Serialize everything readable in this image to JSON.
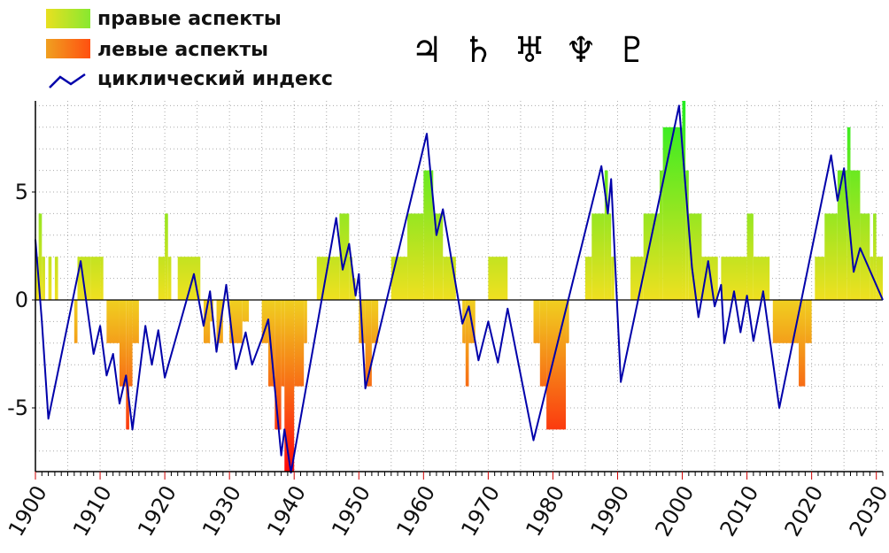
{
  "legend": {
    "right_aspects": "правые аспекты",
    "left_aspects": "левые аспекты",
    "cyclic_index": "циклический индекс"
  },
  "planet_symbols": [
    "♃",
    "♄",
    "♅",
    "♆",
    "♇"
  ],
  "colors": {
    "cyclic_line": "#0000aa",
    "positive_low": "#e8e020",
    "positive_high": "#22ee22",
    "negative_low": "#f0c020",
    "negative_high": "#ff1010",
    "grid": "#aaaaaa"
  },
  "chart_data": {
    "type": "bar",
    "xlim": [
      1900,
      2031
    ],
    "ylim": [
      -8,
      9.3
    ],
    "yticks": [
      -5,
      0,
      5
    ],
    "ytick_labels": [
      "-5",
      "0",
      "5"
    ],
    "xticks": [
      1900,
      1910,
      1920,
      1930,
      1940,
      1950,
      1960,
      1970,
      1980,
      1990,
      2000,
      2010,
      2020,
      2030
    ],
    "xtick_labels": [
      "1900",
      "1910",
      "1920",
      "1930",
      "1940",
      "1950",
      "1960",
      "1970",
      "1980",
      "1990",
      "2000",
      "2010",
      "2020",
      "2030"
    ],
    "grid": true,
    "legend_position": "top-left",
    "series": [
      {
        "name": "правые аспекты / левые аспекты",
        "type": "step-bar",
        "steps": [
          [
            1900,
            2
          ],
          [
            1900.5,
            4
          ],
          [
            1901,
            2
          ],
          [
            1901.5,
            0
          ],
          [
            1902,
            2
          ],
          [
            1902.5,
            0
          ],
          [
            1903,
            2
          ],
          [
            1903.5,
            0
          ],
          [
            1906,
            -2
          ],
          [
            1906.5,
            2
          ],
          [
            1908.5,
            2
          ],
          [
            1910,
            2
          ],
          [
            1910.5,
            0
          ],
          [
            1911,
            -2
          ],
          [
            1913,
            -4
          ],
          [
            1914,
            -6
          ],
          [
            1914.5,
            -4
          ],
          [
            1915,
            -2
          ],
          [
            1916,
            0
          ],
          [
            1919,
            2
          ],
          [
            1920,
            4
          ],
          [
            1920.5,
            2
          ],
          [
            1921,
            0
          ],
          [
            1922,
            2
          ],
          [
            1925.5,
            0
          ],
          [
            1926,
            -2
          ],
          [
            1927,
            -1
          ],
          [
            1927.5,
            0
          ],
          [
            1928,
            -2
          ],
          [
            1929,
            0
          ],
          [
            1930,
            -2
          ],
          [
            1932,
            -1
          ],
          [
            1933,
            0
          ],
          [
            1935,
            -2
          ],
          [
            1936,
            -4
          ],
          [
            1937,
            -6
          ],
          [
            1938,
            -4
          ],
          [
            1938.5,
            -8
          ],
          [
            1940,
            -4
          ],
          [
            1941.5,
            -2
          ],
          [
            1942,
            0
          ],
          [
            1943.5,
            2
          ],
          [
            1947,
            4
          ],
          [
            1948.5,
            2
          ],
          [
            1949,
            1
          ],
          [
            1949.5,
            0
          ],
          [
            1950,
            -2
          ],
          [
            1951,
            -4
          ],
          [
            1952,
            -2
          ],
          [
            1953,
            0
          ],
          [
            1955,
            2
          ],
          [
            1957.5,
            4
          ],
          [
            1960,
            6
          ],
          [
            1961.5,
            4
          ],
          [
            1963,
            2
          ],
          [
            1965,
            0
          ],
          [
            1966,
            -2
          ],
          [
            1966.5,
            -4
          ],
          [
            1967,
            -2
          ],
          [
            1968,
            0
          ],
          [
            1970,
            2
          ],
          [
            1973,
            0
          ],
          [
            1977,
            -2
          ],
          [
            1978,
            -4
          ],
          [
            1979,
            -6
          ],
          [
            1982,
            -2
          ],
          [
            1982.5,
            0
          ],
          [
            1985,
            2
          ],
          [
            1986,
            4
          ],
          [
            1988,
            6
          ],
          [
            1988.5,
            4
          ],
          [
            1989,
            2
          ],
          [
            1989.5,
            0
          ],
          [
            1992,
            2
          ],
          [
            1994,
            4
          ],
          [
            1996.5,
            6
          ],
          [
            1997,
            8
          ],
          [
            2000,
            9.3
          ],
          [
            2000.5,
            6
          ],
          [
            2001,
            4
          ],
          [
            2003,
            2
          ],
          [
            2005.5,
            0
          ],
          [
            2006,
            2
          ],
          [
            2010,
            4
          ],
          [
            2011,
            2
          ],
          [
            2013.5,
            0
          ],
          [
            2014,
            -2
          ],
          [
            2018,
            -4
          ],
          [
            2019,
            -2
          ],
          [
            2020,
            0
          ],
          [
            2020.5,
            2
          ],
          [
            2022,
            4
          ],
          [
            2024,
            6
          ],
          [
            2025.5,
            8
          ],
          [
            2026,
            6
          ],
          [
            2027.5,
            4
          ],
          [
            2029,
            2
          ],
          [
            2029.5,
            4
          ],
          [
            2030,
            2
          ],
          [
            2031,
            0
          ]
        ]
      },
      {
        "name": "циклический индекс",
        "type": "line",
        "points": [
          [
            1900,
            2.8
          ],
          [
            1901,
            -1
          ],
          [
            1902,
            -5.5
          ],
          [
            1907,
            1.8
          ],
          [
            1909,
            -2.5
          ],
          [
            1910,
            -1.2
          ],
          [
            1911,
            -3.5
          ],
          [
            1912,
            -2.5
          ],
          [
            1913,
            -4.8
          ],
          [
            1914,
            -3.5
          ],
          [
            1915,
            -6
          ],
          [
            1917,
            -1.2
          ],
          [
            1918,
            -3
          ],
          [
            1919,
            -1.4
          ],
          [
            1920,
            -3.6
          ],
          [
            1924.5,
            1.2
          ],
          [
            1926,
            -1.2
          ],
          [
            1927,
            0.4
          ],
          [
            1928,
            -2.4
          ],
          [
            1929.5,
            0.7
          ],
          [
            1931,
            -3.2
          ],
          [
            1932.5,
            -1.5
          ],
          [
            1933.5,
            -3
          ],
          [
            1935,
            -1.8
          ],
          [
            1936,
            -0.9
          ],
          [
            1938,
            -7.2
          ],
          [
            1938.5,
            -6
          ],
          [
            1939.5,
            -8
          ],
          [
            1946.5,
            3.8
          ],
          [
            1947.5,
            1.4
          ],
          [
            1948.5,
            2.6
          ],
          [
            1949.5,
            0.2
          ],
          [
            1950,
            1.2
          ],
          [
            1951,
            -4.1
          ],
          [
            1960.5,
            7.7
          ],
          [
            1962,
            3
          ],
          [
            1963,
            4.2
          ],
          [
            1966,
            -1.1
          ],
          [
            1967,
            -0.3
          ],
          [
            1968.5,
            -2.8
          ],
          [
            1970,
            -1
          ],
          [
            1971.5,
            -2.9
          ],
          [
            1973,
            -0.4
          ],
          [
            1977,
            -6.5
          ],
          [
            1987.5,
            6.2
          ],
          [
            1988.5,
            4
          ],
          [
            1989,
            5.6
          ],
          [
            1990.5,
            -3.8
          ],
          [
            1999.5,
            9
          ],
          [
            2001.5,
            1.5
          ],
          [
            2002.5,
            -0.8
          ],
          [
            2004,
            1.8
          ],
          [
            2005,
            -0.3
          ],
          [
            2006,
            0.7
          ],
          [
            2006.5,
            -2
          ],
          [
            2008,
            0.4
          ],
          [
            2009,
            -1.5
          ],
          [
            2010,
            0.2
          ],
          [
            2011,
            -1.9
          ],
          [
            2012.5,
            0.4
          ],
          [
            2015,
            -5
          ],
          [
            2023,
            6.7
          ],
          [
            2024,
            4.6
          ],
          [
            2025,
            6.1
          ],
          [
            2026.5,
            1.3
          ],
          [
            2027.5,
            2.4
          ],
          [
            2031,
            0
          ]
        ]
      }
    ]
  }
}
